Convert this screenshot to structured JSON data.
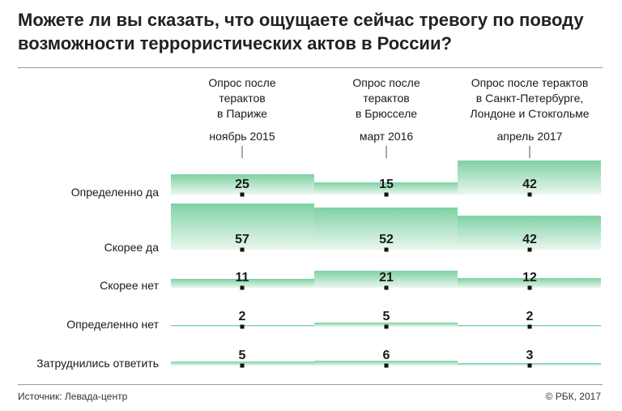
{
  "title": "Можете ли вы сказать, что ощущаете сейчас тревогу по поводу возможности террористических актов в России?",
  "colors": {
    "bar_top": "#7fd1a4",
    "bar_bottom": "#eaf7ef",
    "text": "#1a1a1a",
    "rule": "#9a9a9a"
  },
  "chart_data": {
    "type": "bar",
    "title": "Можете ли вы сказать, что ощущаете сейчас тревогу по поводу возможности террористических актов в России?",
    "categories": [
      "Определенно да",
      "Скорее да",
      "Скорее нет",
      "Определенно нет",
      "Затруднились ответить"
    ],
    "series": [
      {
        "name": "Опрос после терактов в Париже",
        "period": "ноябрь 2015",
        "values": [
          25,
          57,
          11,
          2,
          5
        ]
      },
      {
        "name": "Опрос после терактов в Брюсселе",
        "period": "март 2016",
        "values": [
          15,
          52,
          21,
          5,
          6
        ]
      },
      {
        "name": "Опрос после терактов в Санкт-Петербурге, Лондоне и Стокгольме",
        "period": "апрель 2017",
        "values": [
          42,
          42,
          12,
          2,
          3
        ]
      }
    ],
    "unit": "%"
  },
  "footer": {
    "source": "Источник: Левада-центр",
    "copyright": "© РБК, 2017"
  }
}
